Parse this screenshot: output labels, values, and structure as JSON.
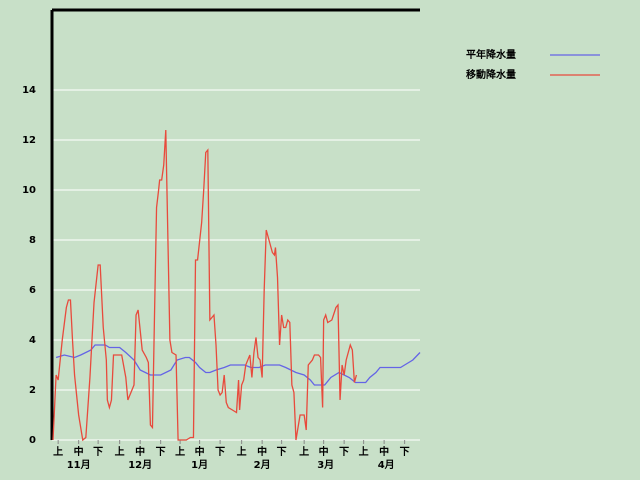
{
  "chart_data": {
    "type": "line",
    "xlim": [
      0,
      179.5
    ],
    "ylim": [
      0,
      17.2
    ],
    "yticks": [
      0,
      2,
      4,
      6,
      8,
      10,
      12,
      14
    ],
    "xticks": [
      {
        "value": 3,
        "label": "上"
      },
      {
        "value": 13,
        "label": "中"
      },
      {
        "value": 22.5,
        "label": "下"
      },
      {
        "value": 33,
        "label": "上"
      },
      {
        "value": 43,
        "label": "中"
      },
      {
        "value": 53,
        "label": "下"
      },
      {
        "value": 62.5,
        "label": "上"
      },
      {
        "value": 72,
        "label": "中"
      },
      {
        "value": 82,
        "label": "下"
      },
      {
        "value": 92.5,
        "label": "上"
      },
      {
        "value": 102.5,
        "label": "中"
      },
      {
        "value": 112,
        "label": "下"
      },
      {
        "value": 123,
        "label": "上"
      },
      {
        "value": 132.5,
        "label": "中"
      },
      {
        "value": 142.5,
        "label": "下"
      },
      {
        "value": 152,
        "label": "上"
      },
      {
        "value": 162,
        "label": "中"
      },
      {
        "value": 172,
        "label": "下"
      }
    ],
    "month_labels": [
      {
        "value": 13,
        "label": "11月"
      },
      {
        "value": 43,
        "label": "12月"
      },
      {
        "value": 72,
        "label": "1月"
      },
      {
        "value": 102.5,
        "label": "2月"
      },
      {
        "value": 133.5,
        "label": "3月"
      },
      {
        "value": 163,
        "label": "4月"
      }
    ],
    "grid": true,
    "legend": "outside-right",
    "series": [
      {
        "name": "平年降水量",
        "color": "#6464e6",
        "x": [
          2,
          6,
          11,
          14,
          19,
          21,
          26,
          28,
          33,
          36,
          40,
          43,
          48,
          53,
          58,
          61,
          65,
          67,
          70,
          72,
          75,
          77,
          80,
          84,
          87,
          94,
          97,
          101,
          104,
          111,
          114,
          119,
          123,
          126,
          128,
          133,
          136,
          140,
          145,
          148,
          153,
          155,
          158,
          160,
          170,
          172,
          176,
          179.5
        ],
        "values": [
          3.3,
          3.4,
          3.3,
          3.4,
          3.6,
          3.8,
          3.8,
          3.7,
          3.7,
          3.5,
          3.2,
          2.8,
          2.6,
          2.6,
          2.8,
          3.2,
          3.3,
          3.3,
          3.1,
          2.9,
          2.7,
          2.7,
          2.8,
          2.9,
          3.0,
          3.0,
          2.9,
          2.9,
          3.0,
          3.0,
          2.9,
          2.7,
          2.6,
          2.4,
          2.2,
          2.2,
          2.5,
          2.7,
          2.5,
          2.3,
          2.3,
          2.5,
          2.7,
          2.9,
          2.9,
          3.0,
          3.2,
          3.5
        ]
      },
      {
        "name": "移動降水量",
        "color": "#e84a3c",
        "x": [
          0.5,
          2,
          3,
          5,
          7,
          8,
          9,
          10,
          11,
          13,
          15,
          16.5,
          18.5,
          20.5,
          22.5,
          23.5,
          25,
          26.5,
          27,
          28,
          29,
          30,
          33,
          34,
          36,
          37,
          40,
          41,
          42,
          44,
          46,
          47,
          48,
          49,
          50,
          51,
          52,
          52.5,
          53.5,
          54.5,
          55.5,
          57.5,
          58.5,
          60.5,
          61.5,
          63.5,
          65.5,
          67.5,
          69,
          70,
          71,
          73,
          74,
          75,
          76,
          77,
          78,
          79,
          80,
          81,
          82,
          83,
          84,
          85,
          86,
          88,
          90,
          91,
          91.5,
          92.5,
          93.5,
          94.5,
          96.5,
          97.5,
          98.5,
          99.5,
          100.5,
          101.5,
          102.5,
          103.5,
          104.5,
          105.5,
          107.5,
          108.5,
          109,
          110,
          111,
          112,
          113,
          114,
          115,
          116,
          117,
          118,
          119,
          120,
          121,
          123,
          124,
          125,
          127,
          128,
          130,
          131,
          132,
          132.5,
          133.5,
          134.5,
          136.5,
          138.5,
          139.5,
          140.5,
          141.5,
          142.5,
          143.5,
          145.5,
          146.5,
          147.5,
          148.5
        ],
        "values": [
          0,
          2.6,
          2.4,
          4,
          5.3,
          5.6,
          5.6,
          4,
          2.6,
          1,
          0,
          0.1,
          2.5,
          5.5,
          7,
          7,
          4.5,
          3.2,
          1.6,
          1.3,
          1.6,
          3.4,
          3.4,
          3.4,
          2.5,
          1.6,
          2.2,
          5,
          5.2,
          3.6,
          3.3,
          3.1,
          0.6,
          0.5,
          5,
          9.3,
          10,
          10.4,
          10.4,
          11,
          12.4,
          4,
          3.5,
          3.4,
          0,
          0,
          0,
          0.1,
          0.1,
          7.2,
          7.2,
          8.7,
          10,
          11.5,
          11.6,
          4.8,
          4.9,
          5,
          3.8,
          2,
          1.8,
          1.9,
          2.6,
          1.5,
          1.3,
          1.2,
          1.1,
          2.4,
          1.2,
          2.2,
          2.4,
          3,
          3.4,
          2.5,
          3.5,
          4.1,
          3.3,
          3.2,
          2.5,
          6,
          8.4,
          8.1,
          7.5,
          7.4,
          7.7,
          6.5,
          3.8,
          5,
          4.5,
          4.5,
          4.8,
          4.7,
          2.2,
          1.9,
          0,
          0.5,
          1,
          1,
          0.4,
          3,
          3.2,
          3.4,
          3.4,
          3.3,
          1.3,
          4.8,
          5,
          4.7,
          4.8,
          5.3,
          5.4,
          1.6,
          3,
          2.6,
          3.2,
          3.8,
          3.6,
          2.3,
          2.6
        ]
      }
    ]
  }
}
